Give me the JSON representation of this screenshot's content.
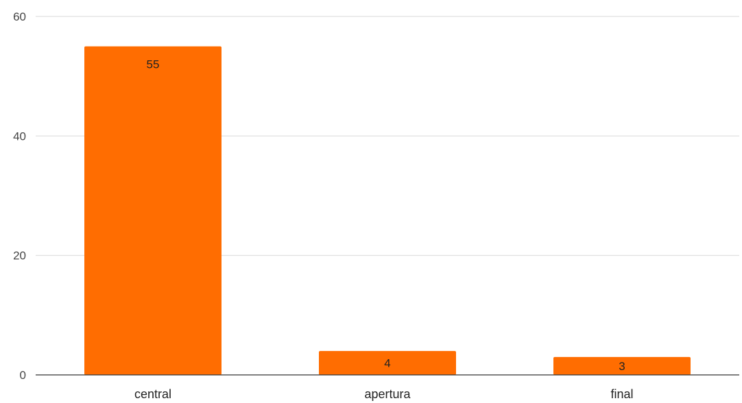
{
  "chart_data": {
    "type": "bar",
    "categories": [
      "central",
      "apertura",
      "final"
    ],
    "values": [
      55,
      4,
      3
    ],
    "title": "",
    "xlabel": "",
    "ylabel": "",
    "ylim": [
      0,
      60
    ],
    "yticks": [
      0,
      20,
      40,
      60
    ],
    "grid": true,
    "bar_color": "#ff6d01",
    "data_labels": [
      "55",
      "4",
      "3"
    ]
  }
}
